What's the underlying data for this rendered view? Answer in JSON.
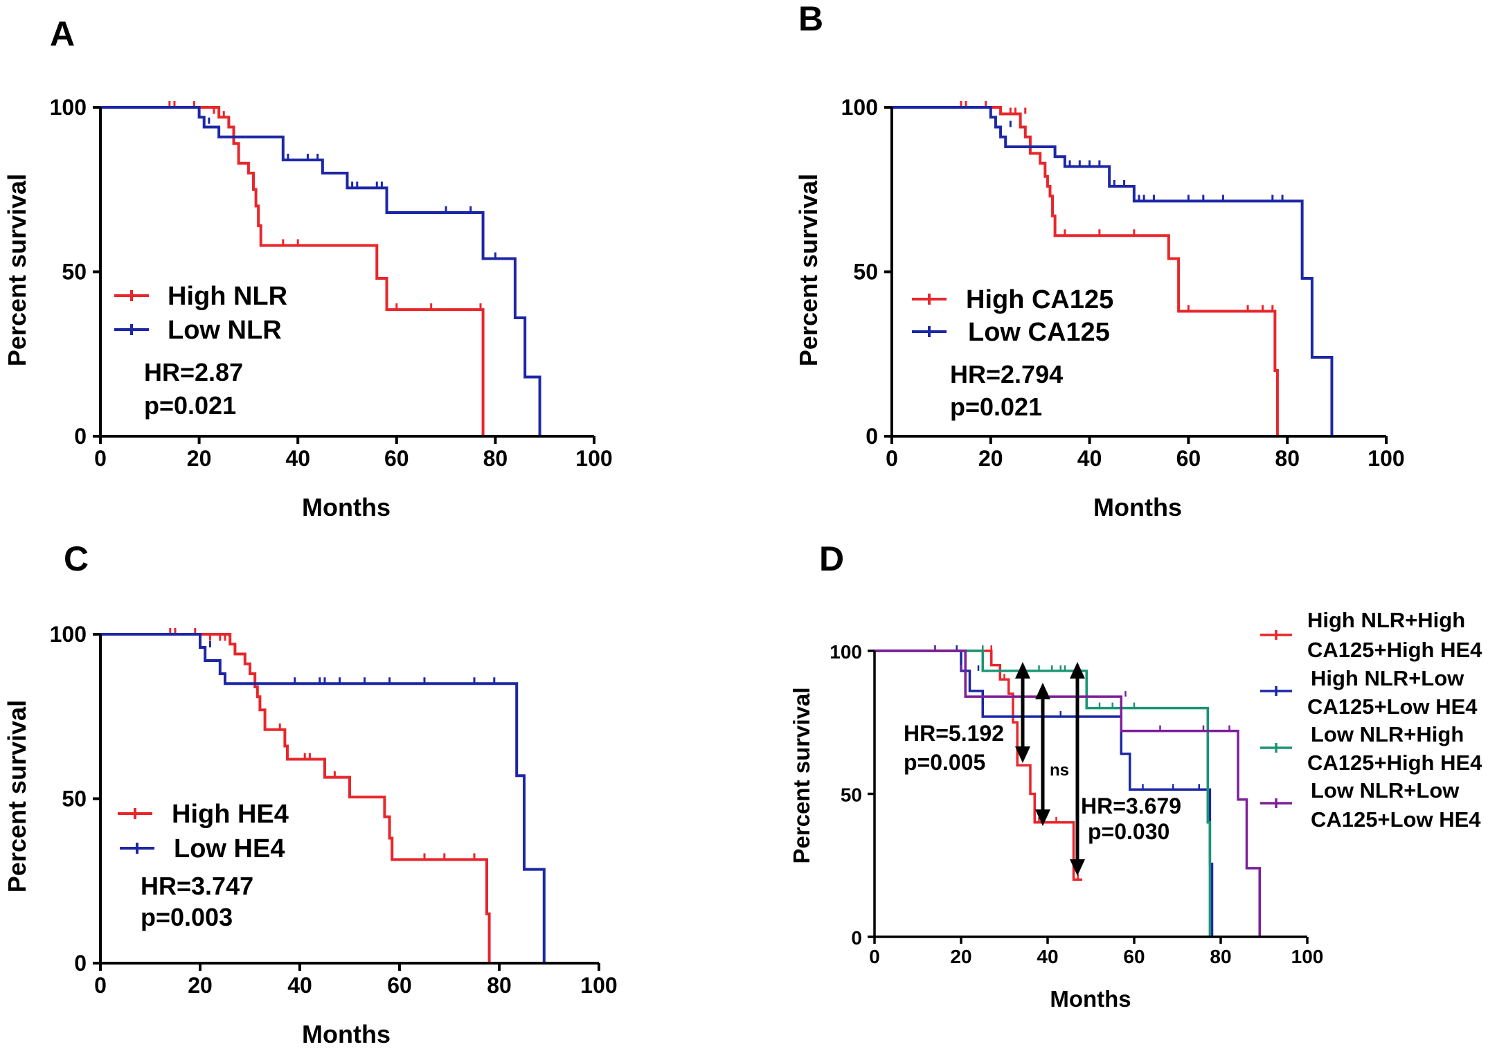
{
  "chart_data": [
    {
      "id": "A",
      "type": "line",
      "panel_label": "A",
      "xlabel": "Months",
      "ylabel": "Percent survival",
      "xlim": [
        0,
        100
      ],
      "ylim": [
        0,
        100
      ],
      "xticks": [
        "0",
        "20",
        "40",
        "60",
        "80",
        "100"
      ],
      "yticks": [
        "0",
        "50",
        "100"
      ],
      "legend_position": "left-center",
      "series": [
        {
          "name": "High NLR",
          "color": "#e8262b",
          "steps": [
            [
              0,
              100
            ],
            [
              24,
              97
            ],
            [
              26,
              94
            ],
            [
              27,
              89
            ],
            [
              28,
              83
            ],
            [
              30,
              80
            ],
            [
              31,
              75
            ],
            [
              31.5,
              70
            ],
            [
              32,
              64
            ],
            [
              32.5,
              58
            ],
            [
              56,
              48
            ],
            [
              58,
              38.5
            ],
            [
              77.5,
              0
            ]
          ],
          "censor": [
            [
              14,
              100
            ],
            [
              15,
              100
            ],
            [
              19,
              100
            ],
            [
              23,
              98
            ],
            [
              25,
              97
            ],
            [
              37,
              58
            ],
            [
              40,
              58
            ],
            [
              60,
              38.5
            ],
            [
              67,
              38.5
            ],
            [
              77,
              38.5
            ]
          ]
        },
        {
          "name": "Low NLR",
          "color": "#1c27a6",
          "steps": [
            [
              0,
              100
            ],
            [
              20,
              97
            ],
            [
              21,
              94
            ],
            [
              24,
              91
            ],
            [
              37,
              84
            ],
            [
              45,
              80
            ],
            [
              50,
              75.5
            ],
            [
              58,
              68
            ],
            [
              77.5,
              54
            ],
            [
              84,
              36
            ],
            [
              86,
              18
            ],
            [
              89,
              0
            ]
          ],
          "censor": [
            [
              22,
              95
            ],
            [
              38,
              84
            ],
            [
              42,
              84
            ],
            [
              44,
              84
            ],
            [
              51,
              75.5
            ],
            [
              52,
              75.5
            ],
            [
              56,
              75.5
            ],
            [
              57,
              75.5
            ],
            [
              70,
              68
            ],
            [
              75,
              68
            ],
            [
              80,
              54
            ]
          ]
        }
      ],
      "annotations": [
        "HR=2.87",
        "p=0.021"
      ]
    },
    {
      "id": "B",
      "type": "line",
      "panel_label": "B",
      "xlabel": "Months",
      "ylabel": "Percent survival",
      "xlim": [
        0,
        100
      ],
      "ylim": [
        0,
        100
      ],
      "xticks": [
        "0",
        "20",
        "40",
        "60",
        "80",
        "100"
      ],
      "yticks": [
        "0",
        "50",
        "100"
      ],
      "legend_position": "left-center",
      "series": [
        {
          "name": "High CA125",
          "color": "#e8262b",
          "steps": [
            [
              0,
              100
            ],
            [
              22,
              98
            ],
            [
              26,
              94
            ],
            [
              27,
              91
            ],
            [
              28,
              86
            ],
            [
              30,
              83
            ],
            [
              31,
              79
            ],
            [
              31.5,
              76
            ],
            [
              32,
              73
            ],
            [
              32.5,
              67
            ],
            [
              33,
              61
            ],
            [
              56,
              54
            ],
            [
              58,
              38
            ],
            [
              77.5,
              20
            ],
            [
              78,
              0
            ]
          ],
          "censor": [
            [
              14,
              100
            ],
            [
              15,
              100
            ],
            [
              19,
              100
            ],
            [
              24,
              98
            ],
            [
              25,
              98
            ],
            [
              27,
              98
            ],
            [
              35,
              61
            ],
            [
              42,
              61
            ],
            [
              49,
              61
            ],
            [
              60,
              38
            ],
            [
              72,
              38
            ],
            [
              75,
              38
            ],
            [
              77,
              38
            ]
          ]
        },
        {
          "name": "Low CA125",
          "color": "#1c27a6",
          "steps": [
            [
              0,
              100
            ],
            [
              20,
              97
            ],
            [
              21,
              94
            ],
            [
              22,
              91
            ],
            [
              23,
              88
            ],
            [
              33,
              85
            ],
            [
              35,
              82
            ],
            [
              44,
              76
            ],
            [
              49,
              71.5
            ],
            [
              83,
              48
            ],
            [
              85,
              24
            ],
            [
              89,
              0
            ]
          ],
          "censor": [
            [
              24,
              94
            ],
            [
              36,
              82
            ],
            [
              38,
              82
            ],
            [
              40,
              82
            ],
            [
              42,
              82
            ],
            [
              45,
              76
            ],
            [
              47,
              76
            ],
            [
              50,
              71.5
            ],
            [
              51,
              71.5
            ],
            [
              53,
              71.5
            ],
            [
              60,
              71.5
            ],
            [
              63,
              71.5
            ],
            [
              67,
              71.5
            ],
            [
              77,
              71.5
            ],
            [
              79,
              71.5
            ]
          ]
        }
      ],
      "annotations": [
        "HR=2.794",
        "p=0.021"
      ]
    },
    {
      "id": "C",
      "type": "line",
      "panel_label": "C",
      "xlabel": "Months",
      "ylabel": "Percent survival",
      "xlim": [
        0,
        100
      ],
      "ylim": [
        0,
        100
      ],
      "xticks": [
        "0",
        "20",
        "40",
        "60",
        "80",
        "100"
      ],
      "yticks": [
        "0",
        "50",
        "100"
      ],
      "legend_position": "left-center",
      "series": [
        {
          "name": "High HE4",
          "color": "#e8262b",
          "steps": [
            [
              0,
              100
            ],
            [
              26,
              97
            ],
            [
              27,
              94
            ],
            [
              29,
              91
            ],
            [
              30,
              88
            ],
            [
              31,
              84
            ],
            [
              31.5,
              81
            ],
            [
              32,
              77
            ],
            [
              33,
              71
            ],
            [
              37,
              66
            ],
            [
              37.5,
              62
            ],
            [
              45,
              56.5
            ],
            [
              50,
              50.5
            ],
            [
              57,
              44.5
            ],
            [
              58,
              38
            ],
            [
              58.5,
              31.5
            ],
            [
              77.5,
              15
            ],
            [
              78,
              0
            ]
          ],
          "censor": [
            [
              14,
              100
            ],
            [
              15,
              100
            ],
            [
              19,
              100
            ],
            [
              22,
              98
            ],
            [
              24,
              98
            ],
            [
              25,
              98
            ],
            [
              26,
              98
            ],
            [
              29,
              91
            ],
            [
              36,
              71
            ],
            [
              41,
              62
            ],
            [
              42,
              62
            ],
            [
              47,
              56.5
            ],
            [
              65,
              31.5
            ],
            [
              69,
              31.5
            ],
            [
              75,
              31.5
            ]
          ]
        },
        {
          "name": "Low HE4",
          "color": "#1c27a6",
          "steps": [
            [
              0,
              100
            ],
            [
              20,
              96
            ],
            [
              21,
              92
            ],
            [
              24,
              88
            ],
            [
              25,
              85
            ],
            [
              83.5,
              57
            ],
            [
              85,
              28.5
            ],
            [
              89,
              0
            ]
          ],
          "censor": [
            [
              22,
              96
            ],
            [
              39,
              85
            ],
            [
              44,
              85
            ],
            [
              45,
              85
            ],
            [
              48,
              85
            ],
            [
              53,
              85
            ],
            [
              58,
              85
            ],
            [
              65,
              85
            ],
            [
              75,
              85
            ],
            [
              79,
              85
            ]
          ]
        }
      ],
      "annotations": [
        "HR=3.747",
        "p=0.003"
      ]
    },
    {
      "id": "D",
      "type": "line",
      "panel_label": "D",
      "xlabel": "Months",
      "ylabel": "Percent survival",
      "xlim": [
        0,
        100
      ],
      "ylim": [
        0,
        100
      ],
      "xticks": [
        "0",
        "20",
        "40",
        "60",
        "80",
        "100"
      ],
      "yticks": [
        "0",
        "50",
        "100"
      ],
      "legend_position": "right",
      "series": [
        {
          "name": "High NLR+High CA125+High HE4",
          "legend_lines": [
            "High NLR+High",
            "CA125+High HE4"
          ],
          "color": "#e8262b",
          "steps": [
            [
              0,
              100
            ],
            [
              27,
              95
            ],
            [
              29,
              90
            ],
            [
              31,
              85
            ],
            [
              32,
              75
            ],
            [
              33,
              60
            ],
            [
              36,
              50
            ],
            [
              37,
              40
            ],
            [
              46,
              20
            ],
            [
              48,
              20
            ]
          ],
          "censor": [
            [
              27,
              100
            ],
            [
              30,
              90
            ],
            [
              38,
              40
            ],
            [
              42,
              40
            ],
            [
              47,
              20
            ]
          ]
        },
        {
          "name": "High NLR+Low CA125+Low HE4",
          "legend_lines": [
            "High NLR+Low",
            "CA125+Low HE4"
          ],
          "color": "#1c27a6",
          "steps": [
            [
              0,
              100
            ],
            [
              20,
              93
            ],
            [
              22,
              86
            ],
            [
              25,
              77
            ],
            [
              57,
              64
            ],
            [
              59,
              51.5
            ],
            [
              77.5,
              25.5
            ],
            [
              78,
              0
            ]
          ],
          "censor": [
            [
              14,
              100
            ],
            [
              19,
              100
            ],
            [
              24,
              93
            ],
            [
              39,
              77
            ],
            [
              43,
              77
            ],
            [
              62,
              51.5
            ],
            [
              69,
              51.5
            ],
            [
              75,
              51.5
            ]
          ]
        },
        {
          "name": "Low NLR+High CA125+High HE4",
          "legend_lines": [
            "Low NLR+High",
            "CA125+High HE4"
          ],
          "color": "#1a9673",
          "steps": [
            [
              0,
              100
            ],
            [
              25,
              93
            ],
            [
              49,
              80
            ],
            [
              77,
              40
            ],
            [
              77.5,
              0
            ]
          ],
          "censor": [
            [
              25,
              100
            ],
            [
              38,
              93
            ],
            [
              41,
              93
            ],
            [
              43,
              93
            ],
            [
              44,
              93
            ],
            [
              52,
              80
            ],
            [
              55,
              80
            ],
            [
              60,
              80
            ]
          ]
        },
        {
          "name": "Low NLR+Low CA125+Low HE4",
          "legend_lines": [
            "Low NLR+Low",
            "CA125+Low HE4"
          ],
          "color": "#7e1f99",
          "steps": [
            [
              0,
              100
            ],
            [
              21,
              84
            ],
            [
              57,
              72
            ],
            [
              84,
              48
            ],
            [
              86,
              24
            ],
            [
              89,
              0
            ]
          ],
          "censor": [
            [
              14,
              100
            ],
            [
              20,
              93
            ],
            [
              58,
              84
            ],
            [
              66,
              72
            ],
            [
              76,
              72
            ],
            [
              82,
              72
            ]
          ]
        }
      ],
      "annotations": [
        "HR=5.192",
        "p=0.005",
        "ns",
        "HR=3.679",
        "p=0.030"
      ]
    }
  ]
}
